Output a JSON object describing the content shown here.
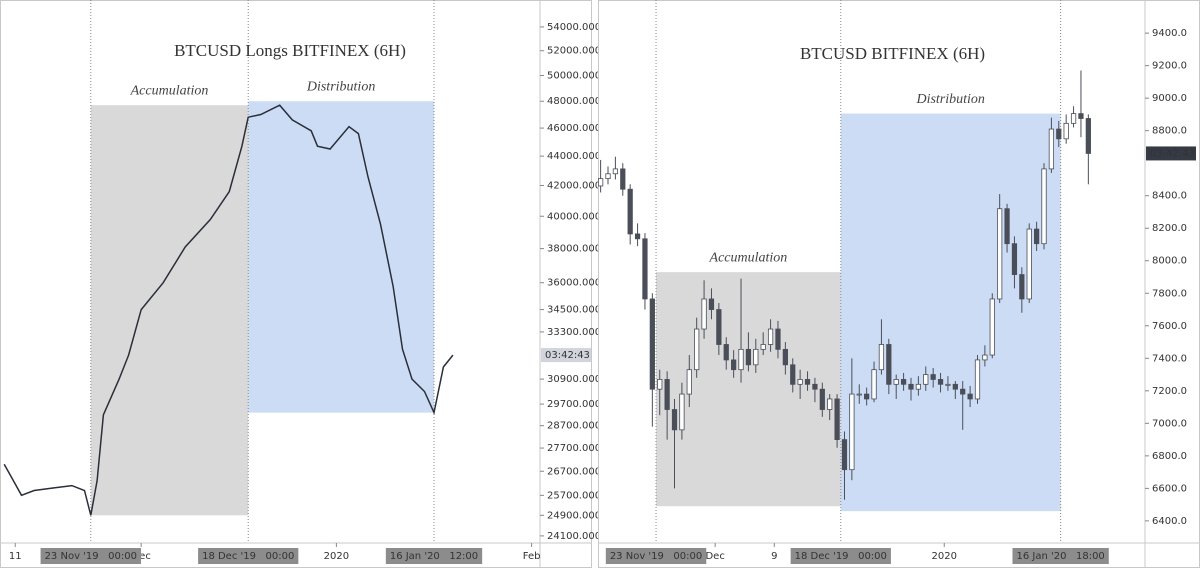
{
  "chart_data": [
    {
      "type": "line",
      "title": "BTCUSD Longs BITFINEX (6H)",
      "log": true,
      "color": "#2a2e39",
      "countdown": "03:42:43",
      "xlim": [
        "2019-11-08T14:00",
        "2020-02-02T08:00"
      ],
      "ylim": [
        23830,
        55910
      ],
      "yticks": [
        {
          "value": 54000,
          "label": "54000.0000"
        },
        {
          "value": 52000,
          "label": "52000.0000"
        },
        {
          "value": 50000,
          "label": "50000.0000"
        },
        {
          "value": 48000,
          "label": "48000.0000"
        },
        {
          "value": 46000,
          "label": "46000.0000"
        },
        {
          "value": 44000,
          "label": "44000.0000"
        },
        {
          "value": 42000,
          "label": "42000.0000"
        },
        {
          "value": 40000,
          "label": "40000.0000"
        },
        {
          "value": 38000,
          "label": "38000.0000"
        },
        {
          "value": 36000,
          "label": "36000.0000"
        },
        {
          "value": 34500,
          "label": "34500.0000"
        },
        {
          "value": 33300,
          "label": "33300.0000"
        },
        {
          "value": 30900,
          "label": "30900.0000"
        },
        {
          "value": 29700,
          "label": "29700.0000"
        },
        {
          "value": 28700,
          "label": "28700.0000"
        },
        {
          "value": 27700,
          "label": "27700.0000"
        },
        {
          "value": 26700,
          "label": "26700.0000"
        },
        {
          "value": 25700,
          "label": "25700.0000"
        },
        {
          "value": 24900,
          "label": "24900.0000"
        },
        {
          "value": 24100,
          "label": "24100.0000"
        }
      ],
      "xticks": [
        {
          "value": "2019-11-11T00:00",
          "label": "11"
        },
        {
          "value": "2019-12-01T00:00",
          "label": "Dec"
        },
        {
          "value": "2020-01-01T00:00",
          "label": "2020"
        },
        {
          "value": "2020-02-01T00:00",
          "label": "Feb"
        }
      ],
      "markers": [
        {
          "value": "2019-11-23T00:00",
          "label": "23 Nov '19   00:00"
        },
        {
          "value": "2019-12-18T00:00",
          "label": "18 Dec '19   00:00"
        },
        {
          "value": "2020-01-16T12:00",
          "label": "16 Jan '20   12:00"
        }
      ],
      "regions": [
        {
          "label": "Accumulation",
          "color": "#d9d9d9",
          "x": [
            "2019-11-23T00:00",
            "2019-12-18T00:00"
          ],
          "y": [
            24900,
            47700
          ]
        },
        {
          "label": "Distribution",
          "color": "#cddcf5",
          "x": [
            "2019-12-18T00:00",
            "2020-01-16T12:00"
          ],
          "y": [
            29300,
            48000
          ]
        }
      ],
      "x": [
        "2019-11-09T06:00",
        "2019-11-10T12:00",
        "2019-11-12T00:00",
        "2019-11-14T00:00",
        "2019-11-17T00:00",
        "2019-11-20T00:00",
        "2019-11-22T00:00",
        "2019-11-23T00:00",
        "2019-11-24T00:00",
        "2019-11-25T00:00",
        "2019-11-27T12:00",
        "2019-11-29T00:00",
        "2019-12-01T00:00",
        "2019-12-04T12:00",
        "2019-12-08T00:00",
        "2019-12-12T00:00",
        "2019-12-15T00:00",
        "2019-12-17T00:00",
        "2019-12-18T00:00",
        "2019-12-20T00:00",
        "2019-12-23T00:00",
        "2019-12-25T00:00",
        "2019-12-28T00:00",
        "2019-12-29T00:00",
        "2019-12-31T00:00",
        "2020-01-03T00:00",
        "2020-01-04T12:00",
        "2020-01-06T00:00",
        "2020-01-08T00:00",
        "2020-01-10T00:00",
        "2020-01-11T12:00",
        "2020-01-13T00:00",
        "2020-01-15T00:00",
        "2020-01-16T12:00",
        "2020-01-18T00:00",
        "2020-01-19T12:00"
      ],
      "values": [
        27000,
        26400,
        25700,
        25900,
        26000,
        26100,
        25900,
        24900,
        26300,
        29200,
        30900,
        32100,
        34500,
        36000,
        38100,
        39800,
        41600,
        44700,
        46800,
        47000,
        47700,
        46600,
        45800,
        44700,
        44500,
        46100,
        45600,
        42600,
        39500,
        35800,
        32400,
        30900,
        30300,
        29300,
        31500,
        32100
      ]
    },
    {
      "type": "candlestick",
      "title": "BTCUSD BITFINEX (6H)",
      "log": false,
      "up_color": "#ffffff",
      "down_color": "#4a4e59",
      "color": "#4a4e59",
      "countdown": "03:42:43",
      "xlim": [
        "2019-11-15T10:00",
        "2020-01-28T04:00"
      ],
      "ylim": [
        6264,
        9573
      ],
      "yticks": [
        {
          "value": 9400,
          "label": "9400.0"
        },
        {
          "value": 9200,
          "label": "9200.0"
        },
        {
          "value": 9000,
          "label": "9000.0"
        },
        {
          "value": 8800,
          "label": "8800.0"
        },
        {
          "value": 8400,
          "label": "8400.0"
        },
        {
          "value": 8200,
          "label": "8200.0"
        },
        {
          "value": 8000,
          "label": "8000.0"
        },
        {
          "value": 7800,
          "label": "7800.0"
        },
        {
          "value": 7600,
          "label": "7600.0"
        },
        {
          "value": 7400,
          "label": "7400.0"
        },
        {
          "value": 7200,
          "label": "7200.0"
        },
        {
          "value": 7000,
          "label": "7000.0"
        },
        {
          "value": 6800,
          "label": "6800.0"
        },
        {
          "value": 6600,
          "label": "6600.0"
        },
        {
          "value": 6400,
          "label": "6400.0"
        }
      ],
      "xticks": [
        {
          "value": "2019-12-01T00:00",
          "label": "Dec"
        },
        {
          "value": "2019-12-09T00:00",
          "label": "9"
        },
        {
          "value": "2020-01-01T00:00",
          "label": "2020"
        }
      ],
      "markers": [
        {
          "value": "2019-11-23T00:00",
          "label": "23 Nov '19   00:00"
        },
        {
          "value": "2019-12-18T00:00",
          "label": "18 Dec '19   00:00"
        },
        {
          "value": "2020-01-16T18:00",
          "label": "16 Jan '20   18:00"
        }
      ],
      "regions": [
        {
          "label": "Accumulation",
          "color": "#d9d9d9",
          "x": [
            "2019-11-23T00:00",
            "2019-12-18T00:00"
          ],
          "y": [
            6490,
            7930
          ]
        },
        {
          "label": "Distribution",
          "color": "#cddcf5",
          "x": [
            "2019-12-18T00:00",
            "2020-01-16T18:00"
          ],
          "y": [
            6460,
            8905
          ]
        }
      ],
      "x": [
        "2019-11-15T00:00",
        "2019-11-16T00:00",
        "2019-11-17T00:00",
        "2019-11-18T00:00",
        "2019-11-19T00:00",
        "2019-11-20T00:00",
        "2019-11-21T00:00",
        "2019-11-22T00:00",
        "2019-11-23T00:00",
        "2019-11-24T00:00",
        "2019-11-25T00:00",
        "2019-11-26T00:00",
        "2019-11-27T00:00",
        "2019-11-28T00:00",
        "2019-11-29T00:00",
        "2019-11-30T00:00",
        "2019-12-01T00:00",
        "2019-12-02T00:00",
        "2019-12-03T00:00",
        "2019-12-04T00:00",
        "2019-12-05T00:00",
        "2019-12-06T00:00",
        "2019-12-07T00:00",
        "2019-12-08T00:00",
        "2019-12-09T00:00",
        "2019-12-10T00:00",
        "2019-12-11T00:00",
        "2019-12-12T00:00",
        "2019-12-13T00:00",
        "2019-12-14T00:00",
        "2019-12-15T00:00",
        "2019-12-16T00:00",
        "2019-12-17T00:00",
        "2019-12-18T00:00",
        "2019-12-19T00:00",
        "2019-12-20T00:00",
        "2019-12-21T00:00",
        "2019-12-22T00:00",
        "2019-12-23T00:00",
        "2019-12-24T00:00",
        "2019-12-25T00:00",
        "2019-12-26T00:00",
        "2019-12-27T00:00",
        "2019-12-28T00:00",
        "2019-12-29T00:00",
        "2019-12-30T00:00",
        "2019-12-31T00:00",
        "2020-01-01T00:00",
        "2020-01-02T00:00",
        "2020-01-03T00:00",
        "2020-01-04T00:00",
        "2020-01-05T00:00",
        "2020-01-06T00:00",
        "2020-01-07T00:00",
        "2020-01-08T00:00",
        "2020-01-09T00:00",
        "2020-01-10T00:00",
        "2020-01-11T00:00",
        "2020-01-12T00:00",
        "2020-01-13T00:00",
        "2020-01-14T00:00",
        "2020-01-15T00:00",
        "2020-01-16T00:00",
        "2020-01-17T00:00",
        "2020-01-18T00:00",
        "2020-01-19T00:00",
        "2020-01-20T00:00"
      ],
      "open": [
        8460,
        8505,
        8535,
        8565,
        8440,
        8165,
        8135,
        7765,
        7210,
        7270,
        7085,
        6960,
        7180,
        7330,
        7580,
        7765,
        7700,
        7485,
        7390,
        7330,
        7455,
        7360,
        7455,
        7485,
        7580,
        7455,
        7360,
        7240,
        7270,
        7240,
        7210,
        7085,
        7150,
        6900,
        6715,
        7180,
        7180,
        7150,
        7330,
        7485,
        7240,
        7270,
        7240,
        7210,
        7240,
        7300,
        7270,
        7240,
        7240,
        7210,
        7180,
        7150,
        7390,
        7420,
        7765,
        8320,
        8105,
        7915,
        7765,
        8195,
        8105,
        8565,
        8810,
        8750,
        8845,
        8905,
        8875
      ],
      "high": [
        8620,
        8580,
        8640,
        8600,
        8470,
        8230,
        8170,
        7800,
        7330,
        7320,
        7150,
        7250,
        7420,
        7650,
        7880,
        7830,
        7740,
        7530,
        7450,
        7890,
        7560,
        7520,
        7560,
        7640,
        7630,
        7500,
        7400,
        7330,
        7320,
        7280,
        7250,
        7180,
        7180,
        6950,
        7400,
        7240,
        7220,
        7380,
        7640,
        7520,
        7300,
        7310,
        7280,
        7290,
        7350,
        7340,
        7310,
        7290,
        7260,
        7260,
        7230,
        7420,
        7480,
        7800,
        8410,
        8350,
        8150,
        7960,
        8230,
        8240,
        8600,
        8880,
        8860,
        8900,
        8950,
        9170,
        8900
      ],
      "low": [
        8420,
        8470,
        8500,
        8400,
        8100,
        8090,
        7700,
        6980,
        7050,
        6900,
        6600,
        6900,
        7100,
        7280,
        7520,
        7640,
        7420,
        7330,
        7280,
        7250,
        7320,
        7310,
        7420,
        7440,
        7400,
        7300,
        7190,
        7150,
        7200,
        7130,
        7040,
        7020,
        6850,
        6530,
        6650,
        7120,
        7110,
        7130,
        7300,
        7180,
        7150,
        7200,
        7140,
        7170,
        7200,
        7220,
        7190,
        7200,
        7150,
        6960,
        7100,
        7120,
        7350,
        7400,
        7740,
        8050,
        7830,
        7680,
        7740,
        8060,
        8070,
        8540,
        8700,
        8720,
        8820,
        8760,
        8470
      ],
      "close": [
        8505,
        8535,
        8565,
        8440,
        8165,
        8135,
        7765,
        7210,
        7270,
        7085,
        6960,
        7180,
        7330,
        7580,
        7765,
        7700,
        7485,
        7390,
        7330,
        7455,
        7360,
        7455,
        7485,
        7580,
        7455,
        7360,
        7240,
        7270,
        7240,
        7210,
        7085,
        7150,
        6900,
        6715,
        7180,
        7180,
        7150,
        7330,
        7485,
        7240,
        7270,
        7240,
        7210,
        7240,
        7300,
        7270,
        7240,
        7240,
        7210,
        7180,
        7150,
        7390,
        7420,
        7765,
        8320,
        8105,
        7915,
        7765,
        8195,
        8105,
        8565,
        8810,
        8750,
        8845,
        8905,
        8875,
        8660
      ]
    }
  ]
}
